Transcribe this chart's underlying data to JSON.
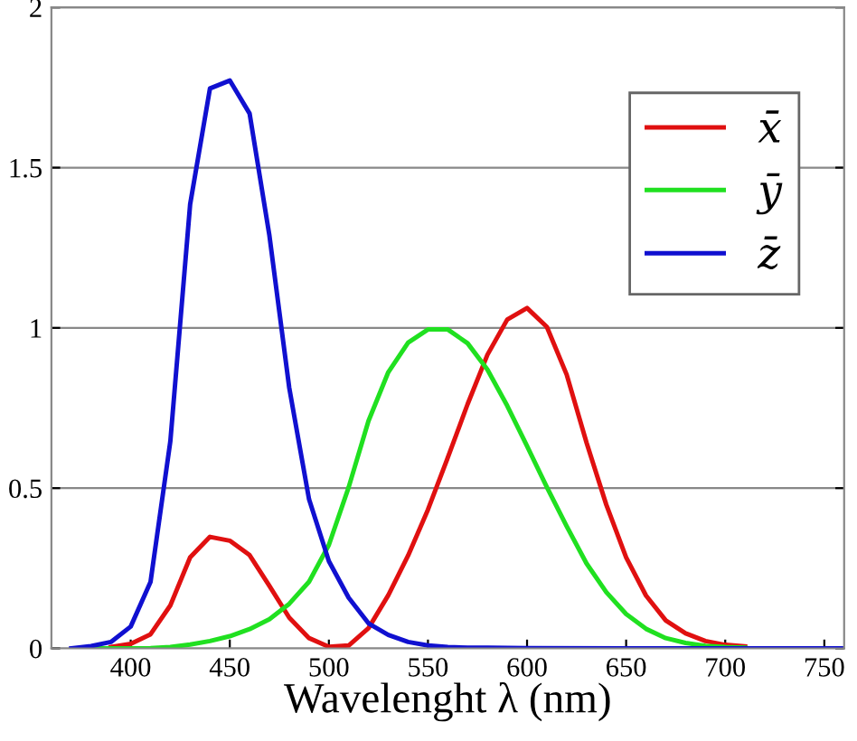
{
  "chart_data": {
    "type": "line",
    "xlabel": "Wavelenght λ (nm)",
    "xlim": [
      360,
      760
    ],
    "xticks": [
      400,
      450,
      500,
      550,
      600,
      650,
      700,
      750
    ],
    "ylim": [
      0,
      2
    ],
    "yticks": [
      0,
      0.5,
      1,
      1.5,
      2
    ],
    "grid": "y",
    "legend": "top right",
    "series": [
      {
        "name": "x̄",
        "color": "#e01010",
        "x": [
          390,
          400,
          410,
          420,
          430,
          440,
          450,
          460,
          470,
          480,
          490,
          500,
          510,
          520,
          530,
          540,
          550,
          560,
          570,
          580,
          590,
          600,
          610,
          620,
          630,
          640,
          650,
          660,
          670,
          680,
          690,
          700,
          710
        ],
        "values": [
          0.004,
          0.014,
          0.044,
          0.134,
          0.284,
          0.348,
          0.336,
          0.291,
          0.195,
          0.096,
          0.032,
          0.005,
          0.009,
          0.063,
          0.166,
          0.29,
          0.433,
          0.595,
          0.762,
          0.916,
          1.026,
          1.062,
          1.003,
          0.854,
          0.642,
          0.448,
          0.284,
          0.165,
          0.087,
          0.047,
          0.023,
          0.011,
          0.006
        ]
      },
      {
        "name": "ȳ",
        "color": "#20e020",
        "x": [
          380,
          390,
          400,
          410,
          420,
          430,
          440,
          450,
          460,
          470,
          480,
          490,
          500,
          510,
          520,
          530,
          540,
          550,
          560,
          570,
          580,
          590,
          600,
          610,
          620,
          630,
          640,
          650,
          660,
          670,
          680,
          690,
          700,
          710
        ],
        "values": [
          0.0,
          0.0,
          0.0,
          0.001,
          0.004,
          0.012,
          0.023,
          0.038,
          0.06,
          0.091,
          0.139,
          0.208,
          0.323,
          0.503,
          0.71,
          0.862,
          0.954,
          0.995,
          0.995,
          0.952,
          0.87,
          0.757,
          0.631,
          0.503,
          0.381,
          0.265,
          0.175,
          0.107,
          0.061,
          0.032,
          0.017,
          0.008,
          0.004,
          0.002
        ]
      },
      {
        "name": "z̄",
        "color": "#1010d0",
        "x": [
          370,
          380,
          390,
          400,
          410,
          420,
          430,
          440,
          450,
          460,
          470,
          480,
          490,
          500,
          510,
          520,
          530,
          540,
          550,
          560,
          570,
          580,
          600,
          650,
          700,
          760
        ],
        "values": [
          0.0,
          0.007,
          0.02,
          0.068,
          0.207,
          0.646,
          1.386,
          1.747,
          1.772,
          1.669,
          1.288,
          0.813,
          0.465,
          0.272,
          0.158,
          0.078,
          0.042,
          0.02,
          0.009,
          0.004,
          0.002,
          0.002,
          0.001,
          0.0,
          0.0,
          0.0
        ]
      }
    ]
  }
}
